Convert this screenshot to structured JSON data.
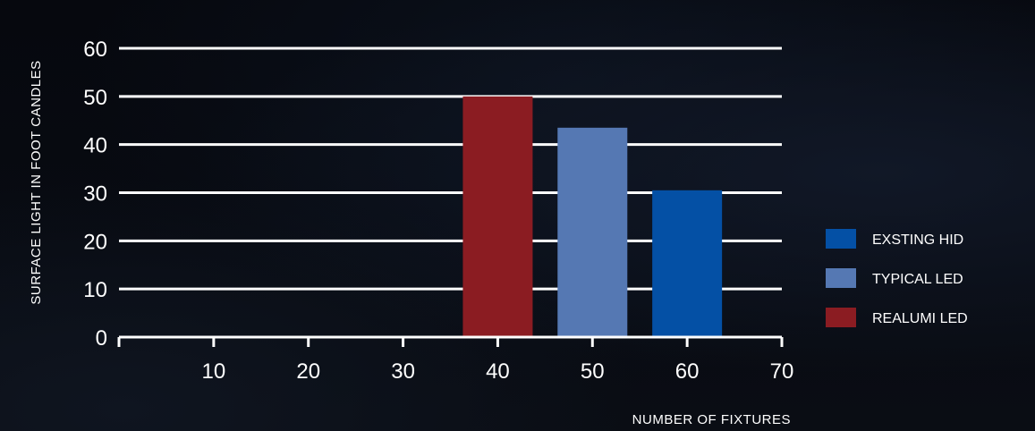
{
  "chart_data": {
    "type": "bar",
    "title": "",
    "xlabel": "NUMBER OF FIXTURES",
    "ylabel": "SURFACE LIGHT IN FOOT CANDLES",
    "x_ticks": [
      10,
      20,
      30,
      40,
      50,
      60,
      70
    ],
    "y_ticks": [
      0,
      10,
      20,
      30,
      40,
      50,
      60
    ],
    "xlim": [
      0,
      70
    ],
    "ylim": [
      0,
      60
    ],
    "grid": "horizontal",
    "legend_position": "right",
    "series": [
      {
        "name": "REALUMI LED",
        "x": 40,
        "value": 50,
        "color": "#8b1c22"
      },
      {
        "name": "TYPICAL LED",
        "x": 50,
        "value": 43.5,
        "color": "#5578b3"
      },
      {
        "name": "EXSTING HID",
        "x": 60,
        "value": 30.5,
        "color": "#0450a5"
      }
    ],
    "legend": [
      {
        "label": "EXSTING HID",
        "color": "#0450a5"
      },
      {
        "label": "TYPICAL LED",
        "color": "#5578b3"
      },
      {
        "label": "REALUMI LED",
        "color": "#8b1c22"
      }
    ]
  }
}
